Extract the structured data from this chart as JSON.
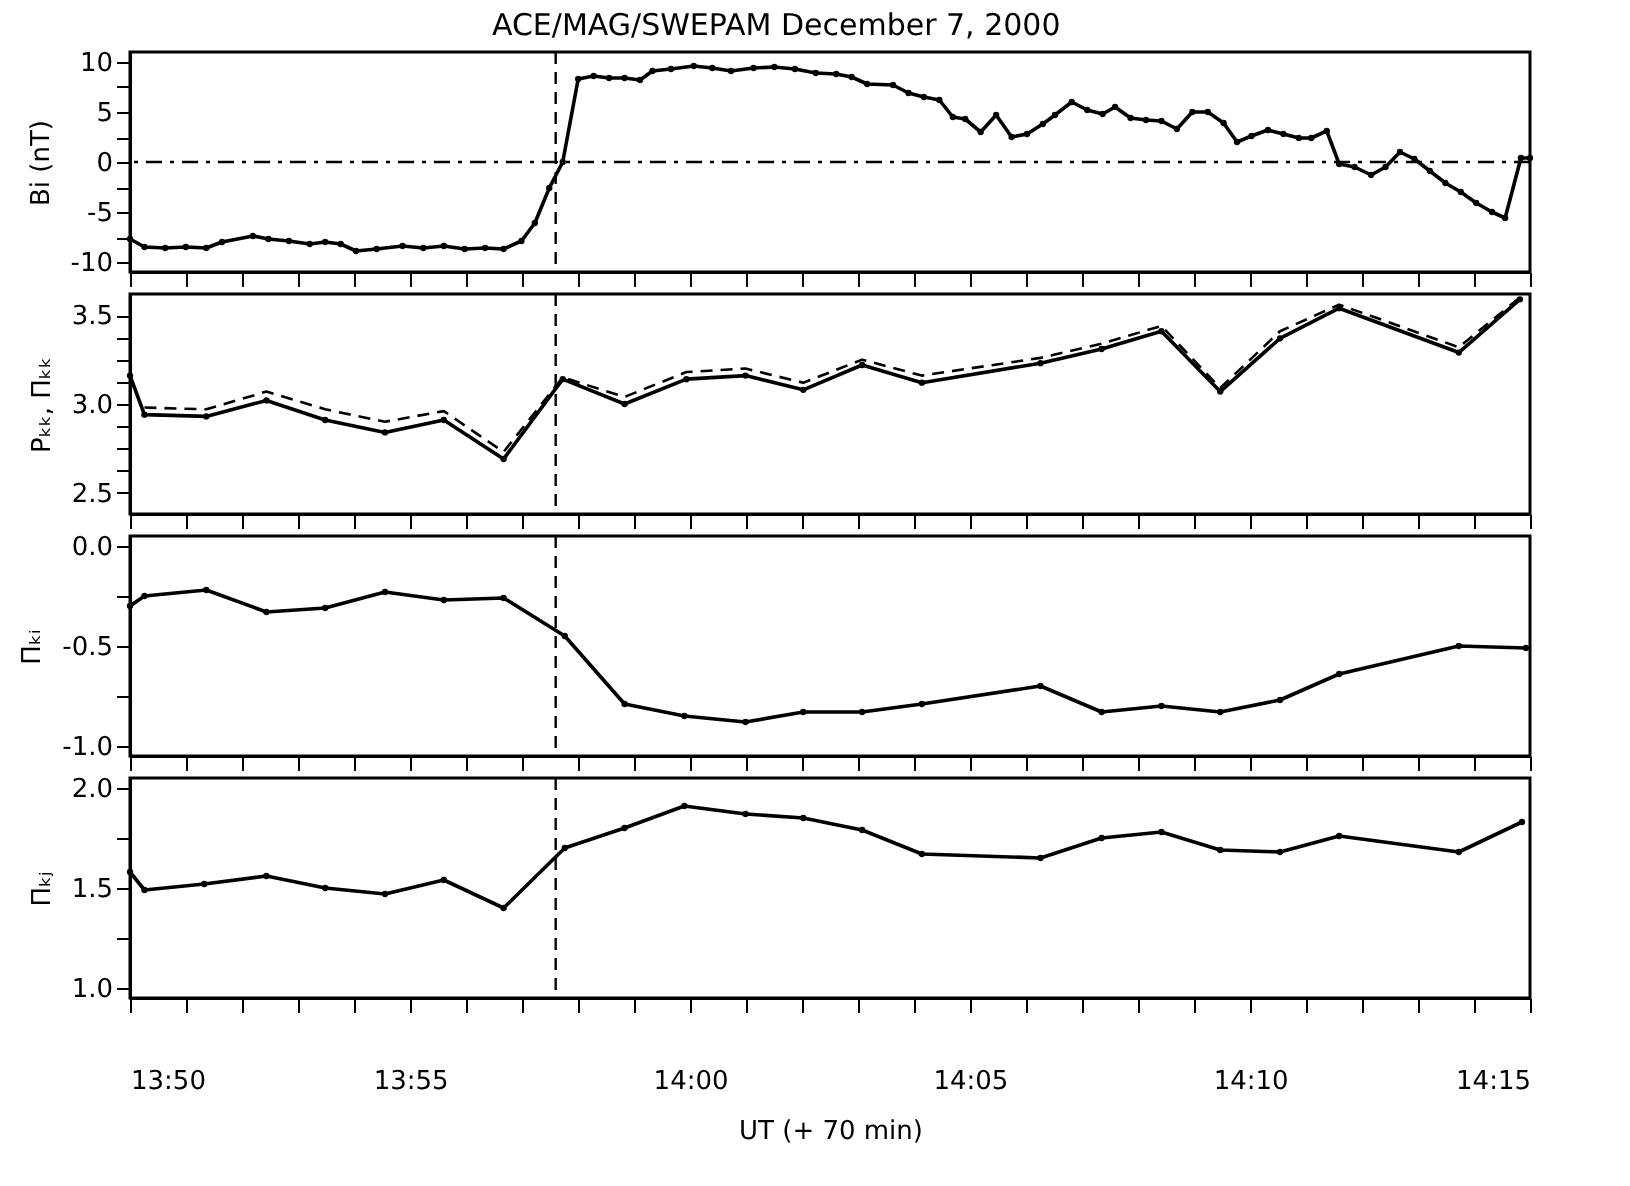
{
  "chart_data": [
    {
      "type": "line",
      "title": "ACE/MAG/SWEPAM      December 7, 2000",
      "ylabel": "Bi (nT)",
      "marker": "circle",
      "grid": false,
      "tick_labels": "y",
      "xlim": [
        13.8333,
        14.25
      ],
      "xticks": [
        {
          "value": 13.8333,
          "label": null
        },
        {
          "value": 13.85,
          "label": null
        },
        {
          "value": 13.8667,
          "label": null
        },
        {
          "value": 13.8833,
          "label": null
        },
        {
          "value": 13.9,
          "label": null
        },
        {
          "value": 13.9167,
          "label": null
        },
        {
          "value": 13.9333,
          "label": null
        },
        {
          "value": 13.95,
          "label": null
        },
        {
          "value": 13.9667,
          "label": null
        },
        {
          "value": 13.9833,
          "label": null
        },
        {
          "value": 14,
          "label": null
        },
        {
          "value": 14.0167,
          "label": null
        },
        {
          "value": 14.0333,
          "label": null
        },
        {
          "value": 14.05,
          "label": null
        },
        {
          "value": 14.0667,
          "label": null
        },
        {
          "value": 14.0833,
          "label": null
        },
        {
          "value": 14.1,
          "label": null
        },
        {
          "value": 14.1167,
          "label": null
        },
        {
          "value": 14.1333,
          "label": null
        },
        {
          "value": 14.15,
          "label": null
        },
        {
          "value": 14.1667,
          "label": null
        },
        {
          "value": 14.1833,
          "label": null
        },
        {
          "value": 14.2,
          "label": null
        },
        {
          "value": 14.2167,
          "label": null
        },
        {
          "value": 14.2333,
          "label": null
        },
        {
          "value": 14.25,
          "label": null
        }
      ],
      "ylim": [
        -11,
        11
      ],
      "yticks": [
        -10,
        {
          "value": -7.5,
          "label": null
        },
        -5,
        {
          "value": -2.5,
          "label": null
        },
        0,
        {
          "value": 2.5,
          "label": null
        },
        5,
        {
          "value": 7.5,
          "label": null
        },
        10
      ],
      "ref_lines": [
        {
          "axis": "x",
          "value": 13.96,
          "line_style": "dashed",
          "color": "#000000"
        },
        {
          "axis": "y",
          "value": 0,
          "line_style": "dashdot",
          "color": "#000000"
        }
      ],
      "series": [
        {
          "color": "#000000",
          "x": [
            13.8333,
            13.8376,
            13.8438,
            13.8499,
            13.856,
            13.8607,
            13.8699,
            13.8745,
            13.8806,
            13.8868,
            13.8914,
            13.896,
            13.9006,
            13.9067,
            13.9144,
            13.9206,
            13.9267,
            13.9329,
            13.939,
            13.9445,
            13.9498,
            13.9538,
            13.9581,
            13.9621,
            13.9667,
            13.9713,
            13.9759,
            13.9805,
            13.9851,
            13.9888,
            13.9943,
            14.0011,
            14.0066,
            14.0122,
            14.0189,
            14.0251,
            14.0312,
            14.0374,
            14.0435,
            14.0481,
            14.0527,
            14.0604,
            14.065,
            14.0696,
            14.0742,
            14.0782,
            14.0819,
            14.0865,
            14.0911,
            14.0957,
            14.1003,
            14.105,
            14.1086,
            14.1136,
            14.1182,
            14.1228,
            14.1265,
            14.1311,
            14.1357,
            14.1403,
            14.1449,
            14.1495,
            14.1541,
            14.1588,
            14.1628,
            14.1671,
            14.172,
            14.1766,
            14.1812,
            14.1849,
            14.1895,
            14.1932,
            14.1978,
            14.2027,
            14.207,
            14.2113,
            14.2156,
            14.2202,
            14.2248,
            14.2294,
            14.234,
            14.2387,
            14.2426,
            14.2473,
            14.25
          ],
          "values": [
            -7.7,
            -8.5,
            -8.6,
            -8.5,
            -8.6,
            -8.0,
            -7.4,
            -7.7,
            -7.9,
            -8.2,
            -8.0,
            -8.2,
            -8.9,
            -8.7,
            -8.4,
            -8.6,
            -8.4,
            -8.7,
            -8.6,
            -8.7,
            -7.9,
            -6.1,
            -2.6,
            0,
            8.3,
            8.6,
            8.4,
            8.4,
            8.2,
            9.1,
            9.3,
            9.6,
            9.4,
            9.1,
            9.4,
            9.5,
            9.3,
            8.9,
            8.8,
            8.5,
            7.8,
            7.7,
            6.9,
            6.5,
            6.2,
            4.5,
            4.3,
            3.0,
            4.7,
            2.5,
            2.8,
            3.8,
            4.7,
            6.0,
            5.2,
            4.8,
            5.5,
            4.4,
            4.2,
            4.1,
            3.3,
            5.0,
            5.0,
            3.9,
            2.0,
            2.6,
            3.2,
            2.8,
            2.4,
            2.4,
            3.1,
            -0.2,
            -0.5,
            -1.3,
            -0.5,
            1.0,
            0.3,
            -0.9,
            -2.1,
            -3.0,
            -4.1,
            -5.0,
            -5.6,
            0.4,
            0.4
          ]
        }
      ]
    },
    {
      "type": "line",
      "ylabel": "Pₖₖ, Πₖₖ",
      "grid": false,
      "tick_labels": "y",
      "xlim": [
        13.8333,
        14.25
      ],
      "xticks": [
        {
          "value": 13.8333,
          "label": null
        },
        {
          "value": 13.85,
          "label": null
        },
        {
          "value": 13.8667,
          "label": null
        },
        {
          "value": 13.8833,
          "label": null
        },
        {
          "value": 13.9,
          "label": null
        },
        {
          "value": 13.9167,
          "label": null
        },
        {
          "value": 13.9333,
          "label": null
        },
        {
          "value": 13.95,
          "label": null
        },
        {
          "value": 13.9667,
          "label": null
        },
        {
          "value": 13.9833,
          "label": null
        },
        {
          "value": 14,
          "label": null
        },
        {
          "value": 14.0167,
          "label": null
        },
        {
          "value": 14.0333,
          "label": null
        },
        {
          "value": 14.05,
          "label": null
        },
        {
          "value": 14.0667,
          "label": null
        },
        {
          "value": 14.0833,
          "label": null
        },
        {
          "value": 14.1,
          "label": null
        },
        {
          "value": 14.1167,
          "label": null
        },
        {
          "value": 14.1333,
          "label": null
        },
        {
          "value": 14.15,
          "label": null
        },
        {
          "value": 14.1667,
          "label": null
        },
        {
          "value": 14.1833,
          "label": null
        },
        {
          "value": 14.2,
          "label": null
        },
        {
          "value": 14.2167,
          "label": null
        },
        {
          "value": 14.2333,
          "label": null
        },
        {
          "value": 14.25,
          "label": null
        }
      ],
      "ylim": [
        2.38,
        3.62
      ],
      "yticks": [
        {
          "value": 2.5,
          "label": "2.5"
        },
        {
          "value": 2.625,
          "label": null
        },
        {
          "value": 2.75,
          "label": null
        },
        {
          "value": 2.875,
          "label": null
        },
        {
          "value": 3,
          "label": "3.0"
        },
        {
          "value": 3.125,
          "label": null
        },
        {
          "value": 3.25,
          "label": null
        },
        {
          "value": 3.375,
          "label": null
        },
        {
          "value": 3.5,
          "label": "3.5"
        }
      ],
      "ref_lines": [
        {
          "axis": "x",
          "value": 13.96,
          "line_style": "dashed",
          "color": "#000000"
        }
      ],
      "series": [
        {
          "color": "#000000",
          "marker": "circle",
          "line_style": "solid",
          "x": [
            13.8333,
            13.8376,
            13.856,
            13.8739,
            13.8914,
            13.9092,
            13.9267,
            13.9445,
            13.9621,
            13.9805,
            13.9989,
            14.0165,
            14.0337,
            14.0512,
            14.069,
            14.1043,
            14.1225,
            14.1403,
            14.1578,
            14.1756,
            14.1932,
            14.2288,
            14.247
          ],
          "values": [
            3.16,
            2.94,
            2.93,
            3.02,
            2.91,
            2.84,
            2.91,
            2.69,
            3.14,
            3.0,
            3.14,
            3.16,
            3.08,
            3.22,
            3.12,
            3.23,
            3.31,
            3.41,
            3.07,
            3.37,
            3.54,
            3.29,
            3.59
          ]
        },
        {
          "color": "#000000",
          "marker": "none",
          "line_style": "dashed",
          "x": [
            13.8376,
            13.856,
            13.8739,
            13.8914,
            13.9092,
            13.9267,
            13.9445,
            13.9621,
            13.9805,
            13.9989,
            14.0165,
            14.0337,
            14.0512,
            14.069,
            14.1043,
            14.1225,
            14.1403,
            14.1578,
            14.1756,
            14.1932,
            14.2288,
            14.247
          ],
          "values": [
            2.98,
            2.97,
            3.07,
            2.97,
            2.9,
            2.96,
            2.73,
            3.15,
            3.04,
            3.18,
            3.2,
            3.12,
            3.25,
            3.16,
            3.26,
            3.34,
            3.44,
            3.09,
            3.41,
            3.56,
            3.32,
            3.6
          ]
        }
      ]
    },
    {
      "type": "line",
      "ylabel": "Πₖᵢ",
      "marker": "circle",
      "grid": false,
      "tick_labels": "y",
      "xlim": [
        13.8333,
        14.25
      ],
      "xticks": [
        {
          "value": 13.8333,
          "label": null
        },
        {
          "value": 13.85,
          "label": null
        },
        {
          "value": 13.8667,
          "label": null
        },
        {
          "value": 13.8833,
          "label": null
        },
        {
          "value": 13.9,
          "label": null
        },
        {
          "value": 13.9167,
          "label": null
        },
        {
          "value": 13.9333,
          "label": null
        },
        {
          "value": 13.95,
          "label": null
        },
        {
          "value": 13.9667,
          "label": null
        },
        {
          "value": 13.9833,
          "label": null
        },
        {
          "value": 14,
          "label": null
        },
        {
          "value": 14.0167,
          "label": null
        },
        {
          "value": 14.0333,
          "label": null
        },
        {
          "value": 14.05,
          "label": null
        },
        {
          "value": 14.0667,
          "label": null
        },
        {
          "value": 14.0833,
          "label": null
        },
        {
          "value": 14.1,
          "label": null
        },
        {
          "value": 14.1167,
          "label": null
        },
        {
          "value": 14.1333,
          "label": null
        },
        {
          "value": 14.15,
          "label": null
        },
        {
          "value": 14.1667,
          "label": null
        },
        {
          "value": 14.1833,
          "label": null
        },
        {
          "value": 14.2,
          "label": null
        },
        {
          "value": 14.2167,
          "label": null
        },
        {
          "value": 14.2333,
          "label": null
        },
        {
          "value": 14.25,
          "label": null
        }
      ],
      "ylim": [
        -1.05,
        0.05
      ],
      "yticks": [
        {
          "value": -1,
          "label": "-1.0"
        },
        {
          "value": -0.75,
          "label": null
        },
        {
          "value": -0.5,
          "label": "-0.5"
        },
        {
          "value": -0.25,
          "label": null
        },
        {
          "value": 0,
          "label": "0.0"
        }
      ],
      "ref_lines": [
        {
          "axis": "x",
          "value": 13.96,
          "line_style": "dashed",
          "color": "#000000"
        }
      ],
      "series": [
        {
          "color": "#000000",
          "x": [
            13.8333,
            13.8376,
            13.856,
            13.8739,
            13.8914,
            13.9092,
            13.9267,
            13.9445,
            13.9627,
            13.9805,
            13.9983,
            14.0165,
            14.0337,
            14.0512,
            14.069,
            14.1043,
            14.1225,
            14.1403,
            14.1578,
            14.1756,
            14.1932,
            14.2288,
            14.2488
          ],
          "values": [
            -0.3,
            -0.25,
            -0.22,
            -0.33,
            -0.31,
            -0.23,
            -0.27,
            -0.26,
            -0.45,
            -0.79,
            -0.85,
            -0.88,
            -0.83,
            -0.83,
            -0.79,
            -0.7,
            -0.83,
            -0.8,
            -0.83,
            -0.77,
            -0.64,
            -0.5,
            -0.51
          ]
        }
      ]
    },
    {
      "type": "line",
      "ylabel": "Πₖⱼ",
      "xlabel": "UT (+ 70 min)",
      "marker": "circle",
      "grid": false,
      "xlim": [
        13.8333,
        14.25
      ],
      "xticks": [
        {
          "value": 13.8333,
          "label": "13:50"
        },
        {
          "value": 13.85,
          "label": null
        },
        {
          "value": 13.8667,
          "label": null
        },
        {
          "value": 13.8833,
          "label": null
        },
        {
          "value": 13.9,
          "label": null
        },
        {
          "value": 13.9167,
          "label": "13:55"
        },
        {
          "value": 13.9333,
          "label": null
        },
        {
          "value": 13.95,
          "label": null
        },
        {
          "value": 13.9667,
          "label": null
        },
        {
          "value": 13.9833,
          "label": null
        },
        {
          "value": 14,
          "label": "14:00"
        },
        {
          "value": 14.0167,
          "label": null
        },
        {
          "value": 14.0333,
          "label": null
        },
        {
          "value": 14.05,
          "label": null
        },
        {
          "value": 14.0667,
          "label": null
        },
        {
          "value": 14.0833,
          "label": "14:05"
        },
        {
          "value": 14.1,
          "label": null
        },
        {
          "value": 14.1167,
          "label": null
        },
        {
          "value": 14.1333,
          "label": null
        },
        {
          "value": 14.15,
          "label": null
        },
        {
          "value": 14.1667,
          "label": "14:10"
        },
        {
          "value": 14.1833,
          "label": null
        },
        {
          "value": 14.2,
          "label": null
        },
        {
          "value": 14.2167,
          "label": null
        },
        {
          "value": 14.2333,
          "label": null
        },
        {
          "value": 14.25,
          "label": "14:15"
        }
      ],
      "ylim": [
        0.95,
        2.05
      ],
      "yticks": [
        {
          "value": 1,
          "label": "1.0"
        },
        {
          "value": 1.25,
          "label": null
        },
        {
          "value": 1.5,
          "label": "1.5"
        },
        {
          "value": 1.75,
          "label": null
        },
        {
          "value": 2,
          "label": "2.0"
        }
      ],
      "ref_lines": [
        {
          "axis": "x",
          "value": 13.96,
          "line_style": "dashed",
          "color": "#000000"
        }
      ],
      "series": [
        {
          "color": "#000000",
          "x": [
            13.8333,
            13.8376,
            13.8554,
            13.8739,
            13.8914,
            13.9092,
            13.9267,
            13.9445,
            13.9627,
            13.9805,
            13.9983,
            14.0165,
            14.0337,
            14.0512,
            14.069,
            14.1043,
            14.1225,
            14.1403,
            14.1578,
            14.1756,
            14.1932,
            14.2288,
            14.2476
          ],
          "values": [
            1.58,
            1.49,
            1.52,
            1.56,
            1.5,
            1.47,
            1.54,
            1.4,
            1.7,
            1.8,
            1.91,
            1.87,
            1.85,
            1.79,
            1.67,
            1.65,
            1.75,
            1.78,
            1.69,
            1.68,
            1.76,
            1.68,
            1.83
          ]
        }
      ]
    }
  ]
}
